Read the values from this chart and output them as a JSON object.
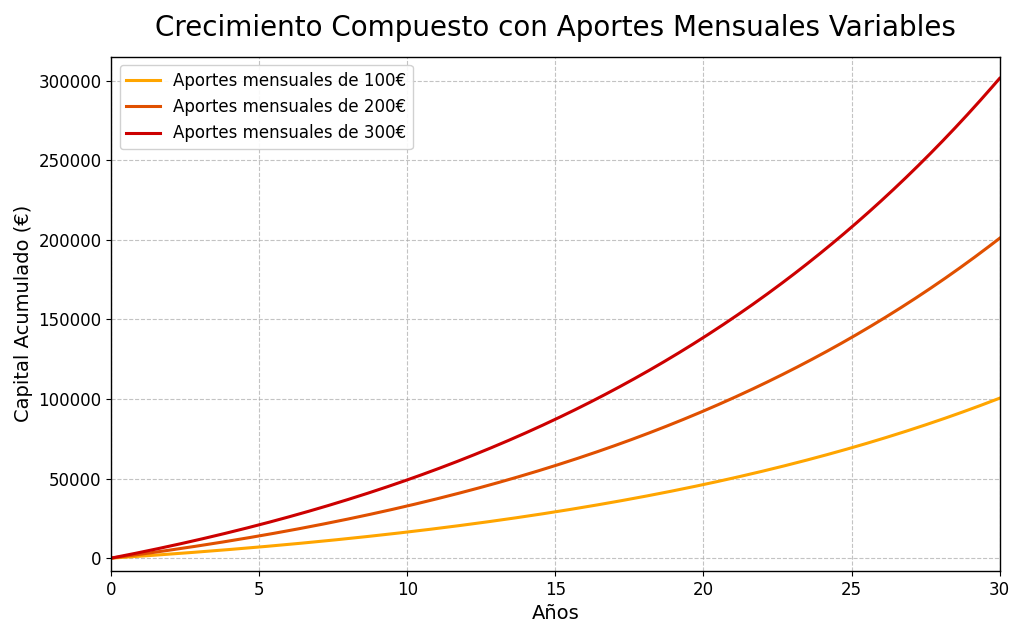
{
  "title": "Crecimiento Compuesto con Aportes Mensuales Variables",
  "xlabel": "Años",
  "ylabel": "Capital Acumulado (€)",
  "annual_rate": 0.06,
  "monthly_contributions": [
    100,
    200,
    300
  ],
  "years": 30,
  "colors": [
    "#FFA500",
    "#E05000",
    "#CC0000"
  ],
  "legend_labels": [
    "Aportes mensuales de 100€",
    "Aportes mensuales de 200€",
    "Aportes mensuales de 300€"
  ],
  "xlim": [
    0,
    30
  ],
  "ylim": [
    -8000,
    315000
  ],
  "xticks": [
    0,
    5,
    10,
    15,
    20,
    25,
    30
  ],
  "yticks": [
    0,
    50000,
    100000,
    150000,
    200000,
    250000,
    300000
  ],
  "title_fontsize": 20,
  "label_fontsize": 14,
  "tick_fontsize": 12,
  "legend_fontsize": 12,
  "line_width": 2.2,
  "background_color": "#ffffff",
  "plot_bg_color": "#ffffff",
  "grid_color": "#aaaaaa",
  "grid_linestyle": "--",
  "grid_alpha": 0.7,
  "spine_color": "#000000",
  "figsize": [
    10.24,
    6.37
  ],
  "dpi": 100
}
